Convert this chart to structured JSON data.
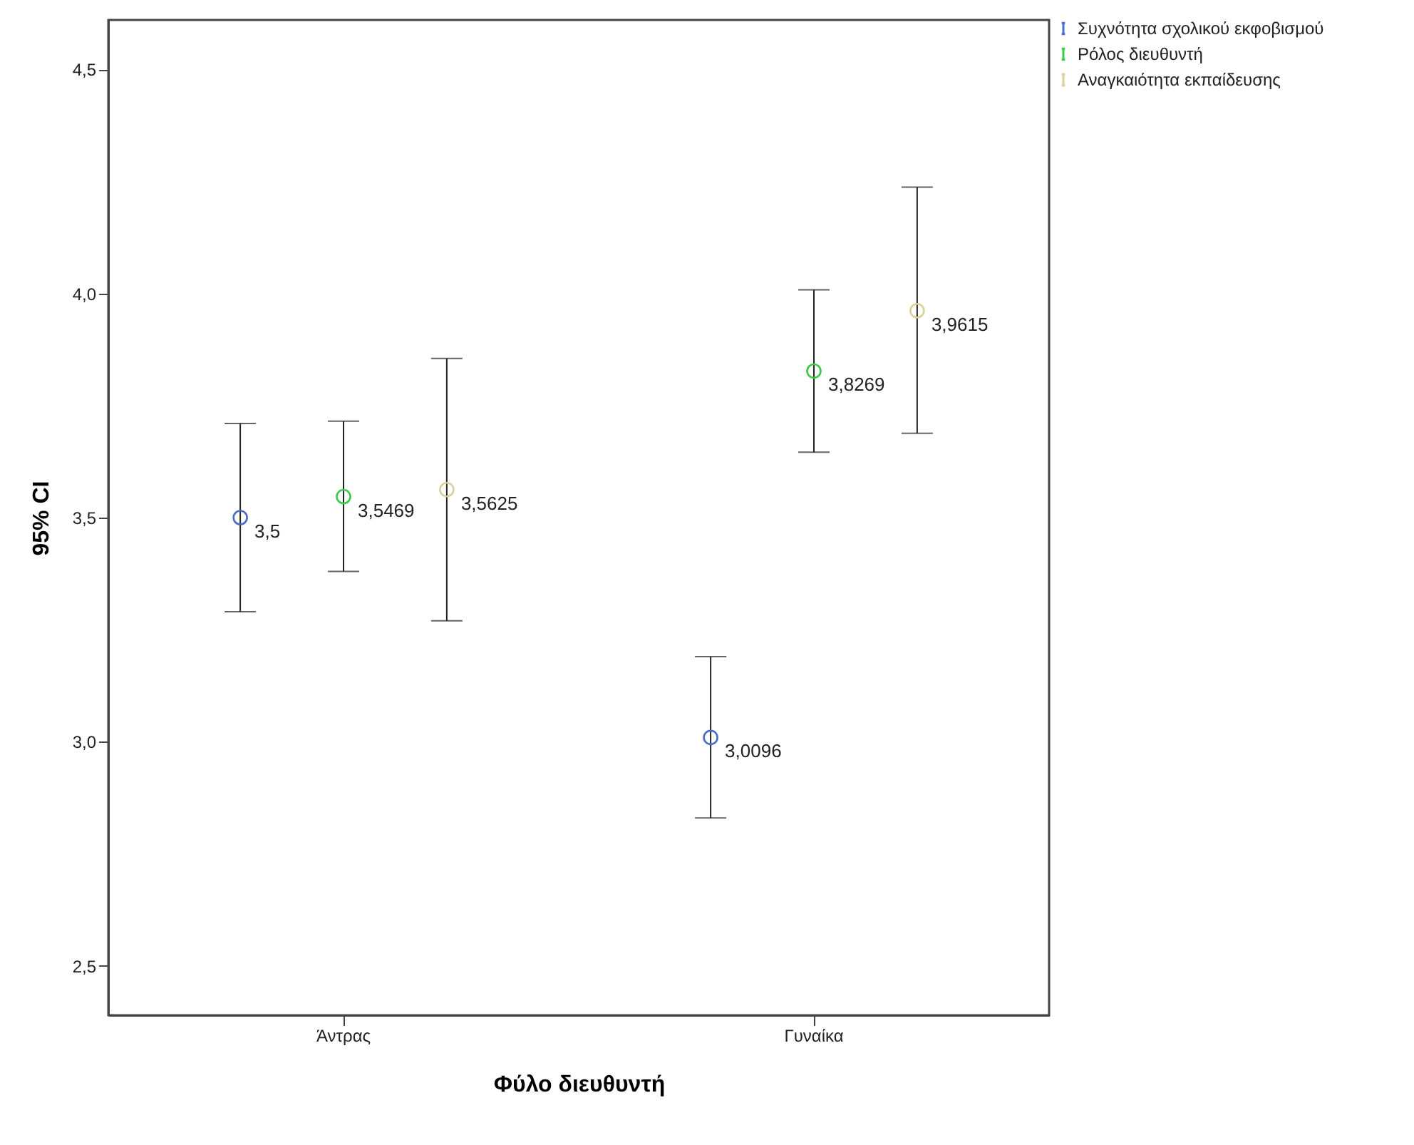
{
  "chart_data": {
    "type": "scatter",
    "xlabel": "Φύλο διευθυντή",
    "ylabel": "95% CI",
    "categories": [
      "Άντρας",
      "Γυναίκα"
    ],
    "series": [
      {
        "name": "Συχνότητα σχολικού εκφοβισμού",
        "color": "#4a6bc8",
        "values": [
          3.5,
          3.0096
        ],
        "errors": [
          [
            3.29,
            3.71
          ],
          [
            2.83,
            3.19
          ]
        ],
        "value_labels": [
          "3,5",
          "3,0096"
        ]
      },
      {
        "name": "Ρόλος διευθυντή",
        "color": "#3ec84a",
        "values": [
          3.5469,
          3.8269
        ],
        "errors": [
          [
            3.38,
            3.715
          ],
          [
            3.646,
            4.008
          ]
        ],
        "value_labels": [
          "3,5469",
          "3,8269"
        ]
      },
      {
        "name": "Αναγκαιότητα εκπαίδευσης",
        "color": "#d9d09a",
        "values": [
          3.5625,
          3.9615
        ],
        "errors": [
          [
            3.27,
            3.855
          ],
          [
            3.688,
            4.237
          ]
        ],
        "value_labels": [
          "3,5625",
          "3,9615"
        ]
      }
    ],
    "ylim": [
      2.39,
      4.61
    ],
    "yticks": [
      {
        "value": 2.5,
        "label": "2,5"
      },
      {
        "value": 3.0,
        "label": "3,0"
      },
      {
        "value": 3.5,
        "label": "3,5"
      },
      {
        "value": 4.0,
        "label": "4,0"
      },
      {
        "value": 4.5,
        "label": "4,5"
      }
    ],
    "grid": false,
    "legend": "top right",
    "marker": "circle"
  }
}
